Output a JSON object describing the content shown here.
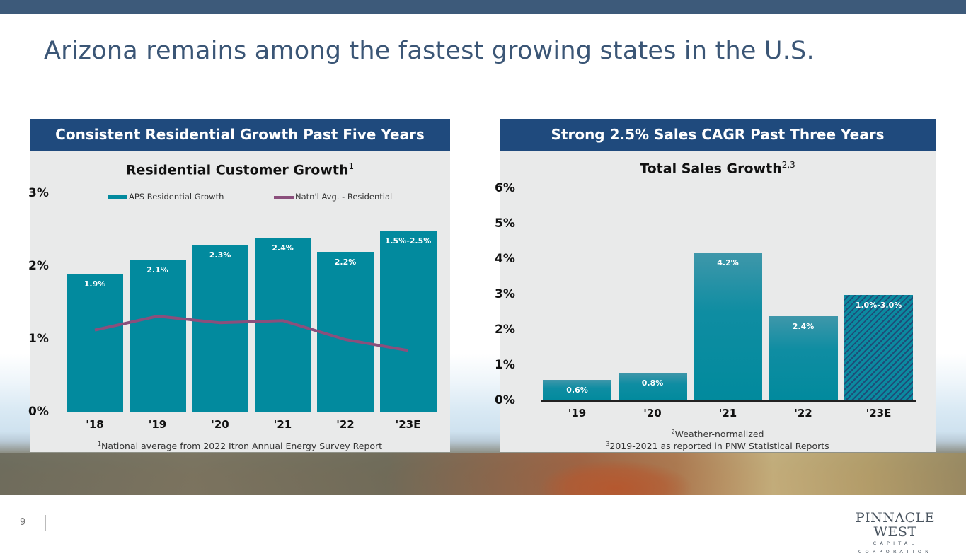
{
  "page": {
    "title": "Arizona remains among the fastest growing states in the U.S.",
    "page_number": "9",
    "logo_line1": "PINNACLE WEST",
    "logo_line2": "CAPITAL CORPORATION",
    "colors": {
      "top_bar": "#3d5a7a",
      "panel_header": "#1f4a7d",
      "bar": "#028a9e",
      "line": "#8b4f7c",
      "hatch_stripe": "#1d4d78"
    }
  },
  "left_panel": {
    "header": "Consistent Residential Growth Past Five Years",
    "footnote_sup": "1",
    "footnote": "National average from 2022 Itron Annual Energy Survey Report"
  },
  "right_panel": {
    "header": "Strong 2.5% Sales CAGR Past Three Years",
    "footnote1_sup": "2",
    "footnote1": "Weather-normalized",
    "footnote2_sup": "3",
    "footnote2": "2019-2021 as reported in PNW Statistical Reports"
  },
  "chart_data": [
    {
      "type": "bar",
      "title": "Residential Customer Growth",
      "title_sup": "1",
      "xlabel": "",
      "ylabel": "",
      "ylim": [
        0,
        3
      ],
      "yticks": [
        "0%",
        "1%",
        "2%",
        "3%"
      ],
      "categories": [
        "'18",
        "'19",
        "'20",
        "'21",
        "'22",
        "'23E"
      ],
      "legend_position": "top",
      "series": [
        {
          "name": "APS Residential Growth",
          "kind": "bar",
          "values": [
            1.9,
            2.1,
            2.3,
            2.4,
            2.2,
            2.5
          ],
          "labels": [
            "1.9%",
            "2.1%",
            "2.3%",
            "2.4%",
            "2.2%",
            "1.5%-2.5%"
          ]
        },
        {
          "name": "Natn'l Avg. - Residential",
          "kind": "line",
          "values": [
            1.13,
            1.32,
            1.23,
            1.26,
            1.0,
            0.85
          ]
        }
      ]
    },
    {
      "type": "bar",
      "title": "Total Sales Growth",
      "title_sup": "2,3",
      "xlabel": "",
      "ylabel": "",
      "ylim": [
        0,
        6
      ],
      "yticks": [
        "0%",
        "1%",
        "2%",
        "3%",
        "4%",
        "5%",
        "6%"
      ],
      "categories": [
        "'19",
        "'20",
        "'21",
        "'22",
        "'23E"
      ],
      "series": [
        {
          "name": "Total Sales Growth",
          "kind": "bar",
          "values": [
            0.6,
            0.8,
            4.2,
            2.4,
            3.0
          ],
          "labels": [
            "0.6%",
            "0.8%",
            "4.2%",
            "2.4%",
            "1.0%-3.0%"
          ],
          "hatched": [
            false,
            false,
            false,
            false,
            true
          ]
        }
      ]
    }
  ]
}
